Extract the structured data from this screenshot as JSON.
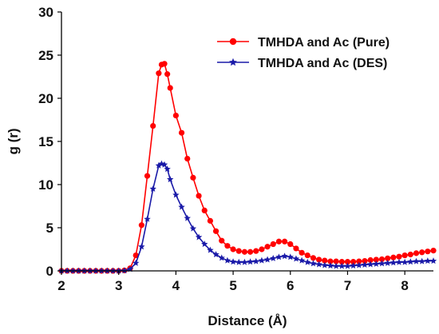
{
  "chart_data": {
    "type": "line",
    "title": "",
    "xlabel": "Distance (Å)",
    "ylabel": "g (r)",
    "xlim": [
      2,
      8.5
    ],
    "ylim": [
      0,
      30
    ],
    "xticks": [
      "2",
      "3",
      "4",
      "5",
      "6",
      "7",
      "8"
    ],
    "yticks": [
      "0",
      "5",
      "10",
      "15",
      "20",
      "25",
      "30"
    ],
    "grid": false,
    "legend_position": "top-right",
    "series": [
      {
        "name": "TMHDA and Ac (Pure)",
        "color": "#ff0000",
        "marker": "circle",
        "x": [
          2.0,
          2.1,
          2.2,
          2.3,
          2.4,
          2.5,
          2.6,
          2.7,
          2.8,
          2.9,
          3.0,
          3.1,
          3.2,
          3.3,
          3.4,
          3.5,
          3.6,
          3.7,
          3.75,
          3.8,
          3.85,
          3.9,
          4.0,
          4.1,
          4.2,
          4.3,
          4.4,
          4.5,
          4.6,
          4.7,
          4.8,
          4.9,
          5.0,
          5.1,
          5.2,
          5.3,
          5.4,
          5.5,
          5.6,
          5.7,
          5.8,
          5.9,
          6.0,
          6.1,
          6.2,
          6.3,
          6.4,
          6.5,
          6.6,
          6.7,
          6.8,
          6.9,
          7.0,
          7.1,
          7.2,
          7.3,
          7.4,
          7.5,
          7.6,
          7.7,
          7.8,
          7.9,
          8.0,
          8.1,
          8.2,
          8.3,
          8.4,
          8.5
        ],
        "y": [
          0,
          0,
          0,
          0,
          0,
          0,
          0,
          0,
          0,
          0,
          0,
          0.05,
          0.3,
          1.8,
          5.3,
          11.0,
          16.8,
          22.9,
          23.9,
          24.0,
          22.8,
          21.2,
          18.0,
          16.0,
          13.0,
          10.8,
          8.7,
          7.0,
          5.8,
          4.6,
          3.5,
          2.9,
          2.5,
          2.3,
          2.2,
          2.2,
          2.3,
          2.5,
          2.8,
          3.1,
          3.4,
          3.4,
          3.1,
          2.6,
          2.1,
          1.8,
          1.5,
          1.3,
          1.2,
          1.1,
          1.1,
          1.05,
          1.05,
          1.05,
          1.1,
          1.15,
          1.25,
          1.3,
          1.35,
          1.45,
          1.55,
          1.65,
          1.8,
          1.9,
          2.05,
          2.15,
          2.25,
          2.35
        ]
      },
      {
        "name": "TMHDA and Ac (DES)",
        "color": "#1a1aa8",
        "marker": "star",
        "x": [
          2.0,
          2.1,
          2.2,
          2.3,
          2.4,
          2.5,
          2.6,
          2.7,
          2.8,
          2.9,
          3.0,
          3.1,
          3.2,
          3.3,
          3.4,
          3.5,
          3.6,
          3.7,
          3.75,
          3.8,
          3.85,
          3.9,
          4.0,
          4.1,
          4.2,
          4.3,
          4.4,
          4.5,
          4.6,
          4.7,
          4.8,
          4.9,
          5.0,
          5.1,
          5.2,
          5.3,
          5.4,
          5.5,
          5.6,
          5.7,
          5.8,
          5.9,
          6.0,
          6.1,
          6.2,
          6.3,
          6.4,
          6.5,
          6.6,
          6.7,
          6.8,
          6.9,
          7.0,
          7.1,
          7.2,
          7.3,
          7.4,
          7.5,
          7.6,
          7.7,
          7.8,
          7.9,
          8.0,
          8.1,
          8.2,
          8.3,
          8.4,
          8.5
        ],
        "y": [
          0,
          0,
          0,
          0,
          0,
          0,
          0,
          0,
          0,
          0,
          0,
          0.03,
          0.2,
          0.9,
          2.8,
          6.0,
          9.5,
          12.2,
          12.4,
          12.3,
          11.8,
          10.6,
          8.8,
          7.4,
          6.1,
          4.9,
          3.9,
          3.1,
          2.4,
          1.9,
          1.5,
          1.2,
          1.05,
          1.0,
          1.0,
          1.05,
          1.1,
          1.2,
          1.3,
          1.45,
          1.6,
          1.7,
          1.6,
          1.4,
          1.2,
          1.0,
          0.85,
          0.75,
          0.65,
          0.6,
          0.55,
          0.55,
          0.55,
          0.6,
          0.65,
          0.7,
          0.75,
          0.8,
          0.85,
          0.9,
          0.95,
          1.0,
          1.0,
          1.05,
          1.1,
          1.1,
          1.15,
          1.15
        ]
      }
    ]
  }
}
